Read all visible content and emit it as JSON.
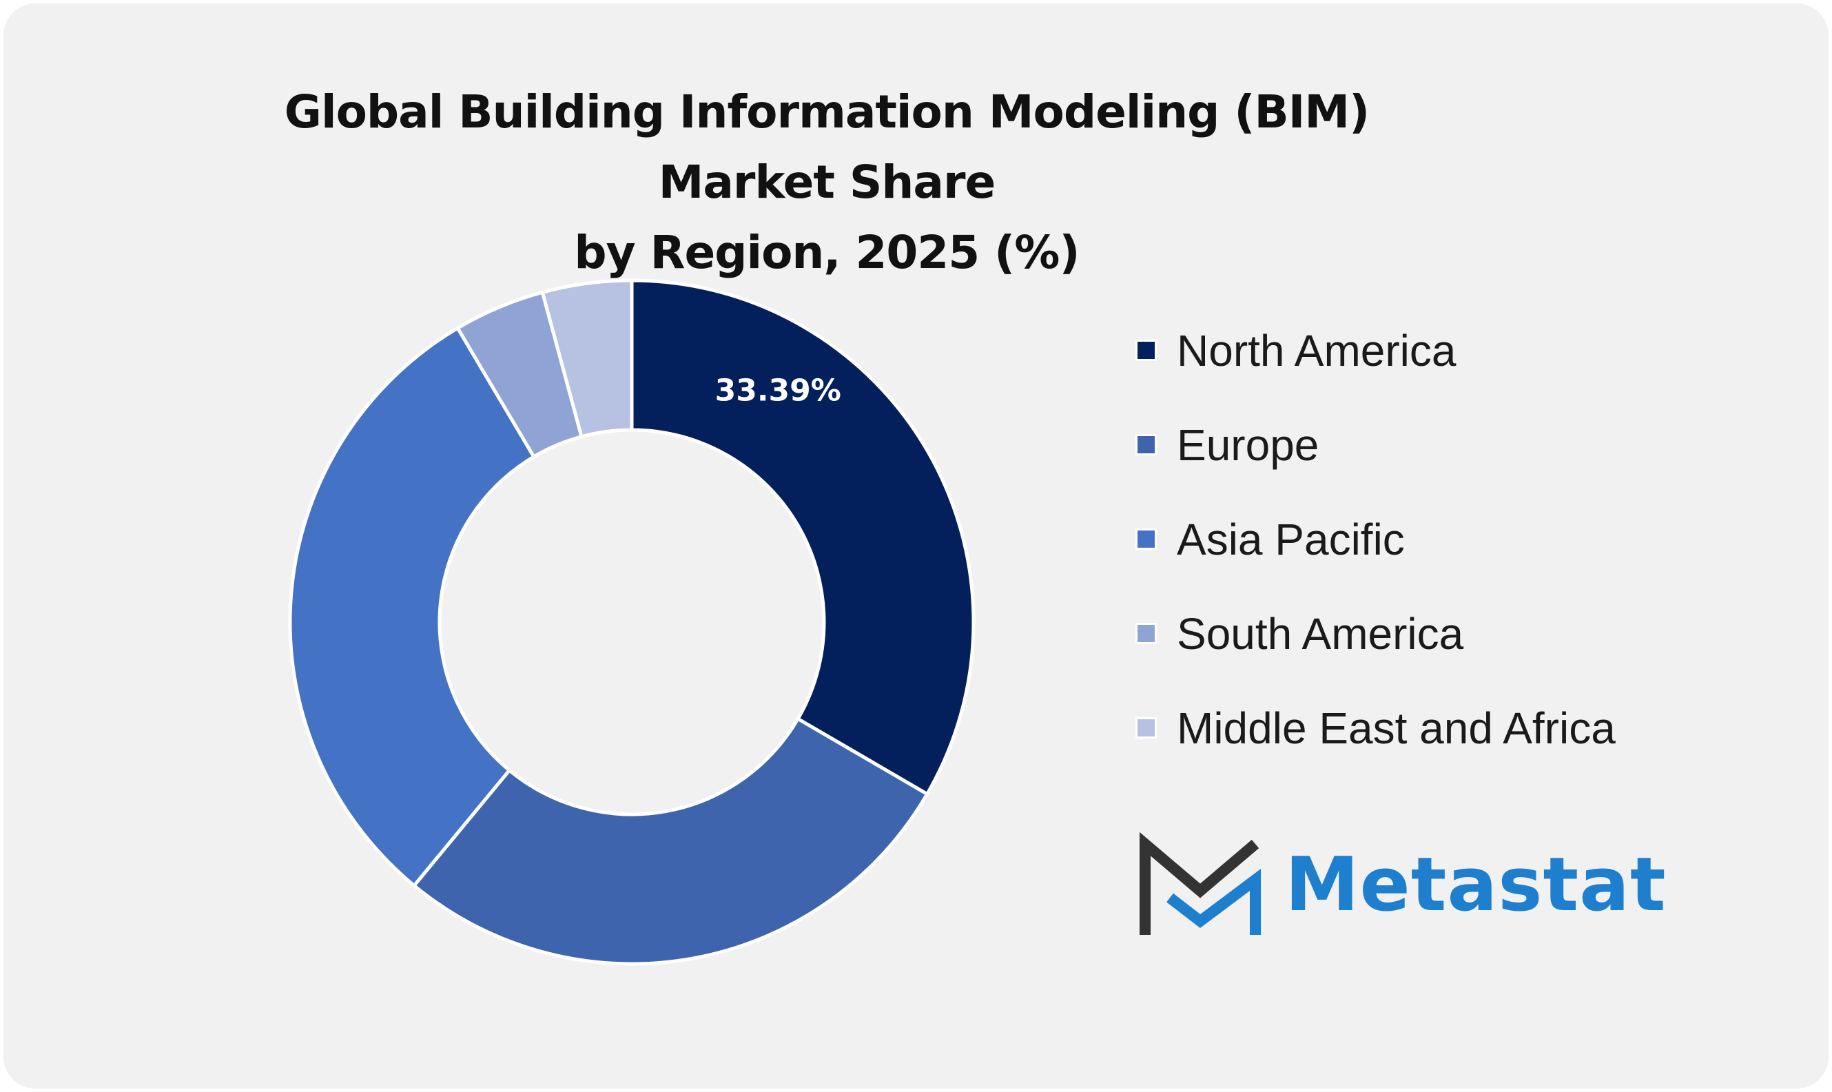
{
  "colors": {
    "card_background": "#f1f1f1",
    "north_america": "#03205c",
    "europe": "#3d64ac",
    "asia_pacific": "#4472c4",
    "south_america": "#8fa3d4",
    "middle_east_africa": "#b7c2e2",
    "brand_blue": "#1f7fcf",
    "brand_dark": "#333333"
  },
  "chart_data": {
    "type": "pie",
    "variant": "donut",
    "title": "Global Building Information Modeling (BIM) Market Share by Region, 2025 (%)",
    "title_lines": [
      "Global Building Information Modeling (BIM) Market Share",
      "by Region, 2025 (%)"
    ],
    "categories": [
      "North America",
      "Europe",
      "Asia Pacific",
      "South America",
      "Middle East and Africa"
    ],
    "values": [
      33.39,
      27.6,
      30.5,
      4.3,
      4.21
    ],
    "data_labels": [
      "33.39%",
      "",
      "",
      "",
      ""
    ],
    "legend_position": "right"
  },
  "logo": {
    "text": "Metastat",
    "icon": "metastat-m-logo-icon"
  }
}
